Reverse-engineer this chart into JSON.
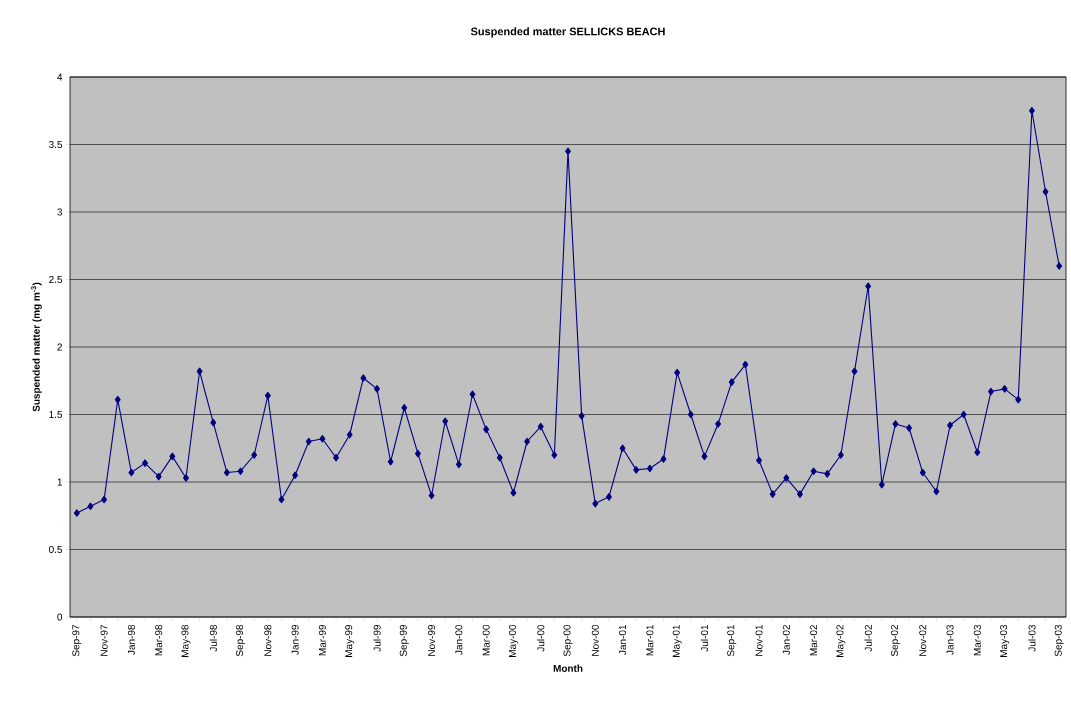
{
  "chart_data": {
    "type": "line",
    "title": "Suspended matter SELLICKS BEACH",
    "xlabel": "Month",
    "ylabel": "Suspended matter (mg m$^{-3}$)",
    "categories": [
      "Sep-97",
      null,
      "Nov-97",
      null,
      "Jan-98",
      null,
      "Mar-98",
      null,
      "May-98",
      null,
      "Jul-98",
      null,
      "Sep-98",
      null,
      "Nov-98",
      null,
      "Jan-99",
      null,
      "Mar-99",
      null,
      "May-99",
      null,
      "Jul-99",
      null,
      "Sep-99",
      null,
      "Nov-99",
      null,
      "Jan-00",
      null,
      "Mar-00",
      null,
      "May-00",
      null,
      "Jul-00",
      null,
      "Sep-00",
      null,
      "Nov-00",
      null,
      "Jan-01",
      null,
      "Mar-01",
      null,
      "May-01",
      null,
      "Jul-01",
      null,
      "Sep-01",
      null,
      "Nov-01",
      null,
      "Jan-02",
      null,
      "Mar-02",
      null,
      "May-02",
      null,
      "Jul-02",
      null,
      "Sep-02",
      null,
      "Nov-02",
      null,
      "Jan-03",
      null,
      "Mar-03",
      null,
      "May-03",
      null,
      "Jul-03",
      null,
      "Sep-03"
    ],
    "series": [
      {
        "color": "#000080",
        "values": [
          0.77,
          0.82,
          0.87,
          1.61,
          1.07,
          1.14,
          1.04,
          1.19,
          1.03,
          1.82,
          1.44,
          1.07,
          1.08,
          1.2,
          1.64,
          0.87,
          1.05,
          1.3,
          1.32,
          1.18,
          1.35,
          1.77,
          1.69,
          1.15,
          1.55,
          1.21,
          0.9,
          1.45,
          1.13,
          1.65,
          1.39,
          1.18,
          0.92,
          1.3,
          1.41,
          1.2,
          3.45,
          1.49,
          0.84,
          0.89,
          1.25,
          1.09,
          1.1,
          1.17,
          1.81,
          1.5,
          1.19,
          1.43,
          1.74,
          1.87,
          1.16,
          0.91,
          1.03,
          0.91,
          1.08,
          1.06,
          1.2,
          1.82,
          2.45,
          0.98,
          1.43,
          1.4,
          1.07,
          0.93,
          1.42,
          1.5,
          1.22,
          1.67,
          1.69,
          1.61,
          3.75,
          3.15,
          2.6
        ]
      }
    ],
    "ylim": [
      0,
      4
    ],
    "yticks": [
      0,
      0.5,
      1,
      1.5,
      2,
      2.5,
      3,
      3.5,
      4
    ],
    "grid": "y",
    "marker": "diamond",
    "line_style": "solid"
  }
}
